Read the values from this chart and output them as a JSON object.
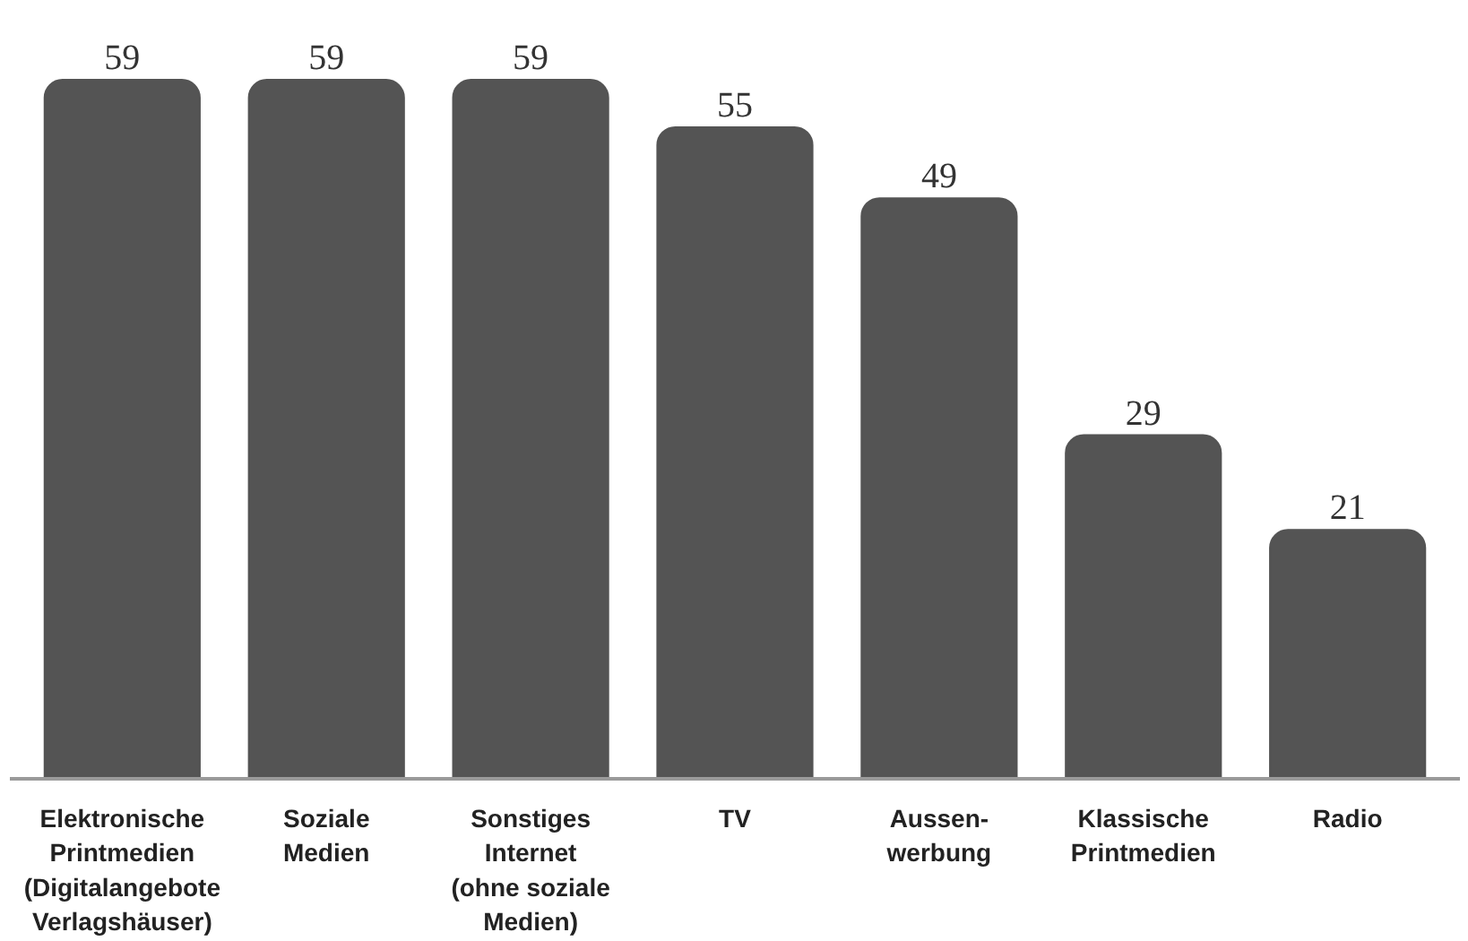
{
  "chart_data": {
    "type": "bar",
    "categories": [
      "Elektronische\nPrintmedien\n(Digitalangebote\nVerlagshäuser)",
      "Soziale\nMedien",
      "Sonstiges\nInternet\n(ohne soziale\nMedien)",
      "TV",
      "Aussen-\nwerbung",
      "Klassische\nPrintmedien",
      "Radio"
    ],
    "values": [
      59,
      59,
      59,
      55,
      49,
      29,
      21
    ],
    "color": "#545454",
    "data_labels": true
  }
}
